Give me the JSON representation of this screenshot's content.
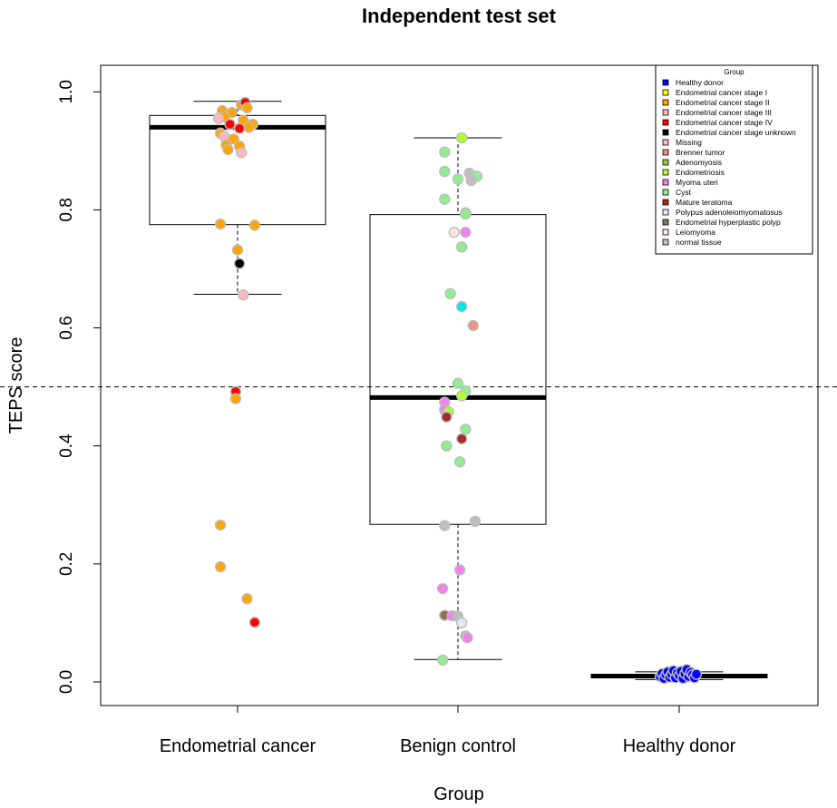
{
  "chart_data": {
    "type": "boxplot",
    "title": "Independent test set",
    "xlabel": "Group",
    "ylabel": "TEPS score",
    "ylim": [
      -0.04,
      1.045
    ],
    "yticks": [
      "0.0",
      "0.2",
      "0.4",
      "0.6",
      "0.8",
      "1.0"
    ],
    "ytick_values": [
      0,
      0.2,
      0.4,
      0.6,
      0.8,
      1.0
    ],
    "reference_line": 0.5,
    "categories": [
      "Endometrial cancer",
      "Benign control",
      "Healthy donor"
    ],
    "boxes": [
      {
        "category": "Endometrial cancer",
        "whisker_low": 0.657,
        "q1": 0.775,
        "median": 0.94,
        "q3": 0.96,
        "whisker_high": 0.984
      },
      {
        "category": "Benign control",
        "whisker_low": 0.038,
        "q1": 0.267,
        "median": 0.482,
        "q3": 0.792,
        "whisker_high": 0.922
      },
      {
        "category": "Healthy donor",
        "whisker_low": 0.004,
        "q1": 0.007,
        "median": 0.01,
        "q3": 0.013,
        "whisker_high": 0.017
      }
    ],
    "legend": {
      "title": "Group",
      "position": "top-right",
      "entries": [
        {
          "label": "Healthy donor",
          "color": "#0000ff"
        },
        {
          "label": "Endometrial cancer stage I",
          "color": "#ffff00"
        },
        {
          "label": "Endometrial cancer stage II",
          "color": "#ffa500"
        },
        {
          "label": "Endometrial cancer stage III",
          "color": "#ffb6c1"
        },
        {
          "label": "Endometrial cancer stage IV",
          "color": "#ff0000"
        },
        {
          "label": "Endometrial cancer stage unknown",
          "color": "#000000"
        },
        {
          "label": "Missing",
          "color": "#ffb6c1"
        },
        {
          "label": "Brenner tumor",
          "color": "#e9967a"
        },
        {
          "label": "Adenomyosis",
          "color": "#9acd32"
        },
        {
          "label": "Endometriosis",
          "color": "#adff2f"
        },
        {
          "label": "Myoma uteri",
          "color": "#ee82ee"
        },
        {
          "label": "Cyst",
          "color": "#90ee90"
        },
        {
          "label": "Mature teratoma",
          "color": "#a52a2a"
        },
        {
          "label": "Polypus adenoleiomyomatosus",
          "color": "#e6e6fa"
        },
        {
          "label": "Endometrial hyperplastic polyp",
          "color": "#8b7355"
        },
        {
          "label": "Leiomyoma",
          "color": "#ffe4e1"
        },
        {
          "label": "normal tissue",
          "color": "#bebebe"
        }
      ]
    },
    "points": [
      {
        "group": 0,
        "dx": -0.08,
        "y": 0.968,
        "color": "#ffa500"
      },
      {
        "group": 0,
        "dx": -0.03,
        "y": 0.965,
        "color": "#ffa500"
      },
      {
        "group": 0,
        "dx": -0.07,
        "y": 0.958,
        "color": "#ffa500"
      },
      {
        "group": 0,
        "dx": -0.1,
        "y": 0.955,
        "color": "#ffb6c1"
      },
      {
        "group": 0,
        "dx": 0.02,
        "y": 0.978,
        "color": "#ffa500"
      },
      {
        "group": 0,
        "dx": 0.04,
        "y": 0.982,
        "color": "#ff0000"
      },
      {
        "group": 0,
        "dx": 0.05,
        "y": 0.973,
        "color": "#ffa500"
      },
      {
        "group": 0,
        "dx": 0.03,
        "y": 0.952,
        "color": "#ffa500"
      },
      {
        "group": 0,
        "dx": 0.08,
        "y": 0.945,
        "color": "#ffa500"
      },
      {
        "group": 0,
        "dx": 0.06,
        "y": 0.94,
        "color": "#ffa500"
      },
      {
        "group": 0,
        "dx": -0.04,
        "y": 0.945,
        "color": "#ff0000"
      },
      {
        "group": 0,
        "dx": 0.01,
        "y": 0.938,
        "color": "#ff0000"
      },
      {
        "group": 0,
        "dx": -0.09,
        "y": 0.93,
        "color": "#ffa500"
      },
      {
        "group": 0,
        "dx": -0.07,
        "y": 0.925,
        "color": "#ffb6c1"
      },
      {
        "group": 0,
        "dx": -0.02,
        "y": 0.92,
        "color": "#ffa500"
      },
      {
        "group": 0,
        "dx": -0.06,
        "y": 0.91,
        "color": "#ffa500"
      },
      {
        "group": 0,
        "dx": 0.01,
        "y": 0.908,
        "color": "#ffa500"
      },
      {
        "group": 0,
        "dx": -0.05,
        "y": 0.902,
        "color": "#ffa500"
      },
      {
        "group": 0,
        "dx": 0.02,
        "y": 0.897,
        "color": "#ffb6c1"
      },
      {
        "group": 0,
        "dx": -0.09,
        "y": 0.776,
        "color": "#ffa500"
      },
      {
        "group": 0,
        "dx": 0.09,
        "y": 0.774,
        "color": "#ffa500"
      },
      {
        "group": 0,
        "dx": 0.0,
        "y": 0.732,
        "color": "#ffa500"
      },
      {
        "group": 0,
        "dx": 0.01,
        "y": 0.709,
        "color": "#000000"
      },
      {
        "group": 0,
        "dx": 0.03,
        "y": 0.656,
        "color": "#ffb6c1"
      },
      {
        "group": 0,
        "dx": -0.01,
        "y": 0.492,
        "color": "#ff0000"
      },
      {
        "group": 0,
        "dx": -0.01,
        "y": 0.48,
        "color": "#ffa500"
      },
      {
        "group": 0,
        "dx": -0.09,
        "y": 0.266,
        "color": "#ffa500"
      },
      {
        "group": 0,
        "dx": -0.09,
        "y": 0.195,
        "color": "#ffa500"
      },
      {
        "group": 0,
        "dx": 0.05,
        "y": 0.141,
        "color": "#ffa500"
      },
      {
        "group": 0,
        "dx": 0.09,
        "y": 0.101,
        "color": "#ff0000"
      },
      {
        "group": 1,
        "dx": 0.02,
        "y": 0.922,
        "color": "#adff2f"
      },
      {
        "group": 1,
        "dx": -0.07,
        "y": 0.898,
        "color": "#90ee90"
      },
      {
        "group": 1,
        "dx": -0.07,
        "y": 0.865,
        "color": "#90ee90"
      },
      {
        "group": 1,
        "dx": 0.06,
        "y": 0.862,
        "color": "#bebebe"
      },
      {
        "group": 1,
        "dx": 0.1,
        "y": 0.857,
        "color": "#90ee90"
      },
      {
        "group": 1,
        "dx": 0.0,
        "y": 0.852,
        "color": "#90ee90"
      },
      {
        "group": 1,
        "dx": 0.07,
        "y": 0.85,
        "color": "#bebebe"
      },
      {
        "group": 1,
        "dx": -0.07,
        "y": 0.818,
        "color": "#90ee90"
      },
      {
        "group": 1,
        "dx": 0.04,
        "y": 0.795,
        "color": "#bebebe"
      },
      {
        "group": 1,
        "dx": 0.04,
        "y": 0.793,
        "color": "#90ee90"
      },
      {
        "group": 1,
        "dx": -0.02,
        "y": 0.762,
        "color": "#ffe4e1"
      },
      {
        "group": 1,
        "dx": 0.04,
        "y": 0.762,
        "color": "#ee82ee"
      },
      {
        "group": 1,
        "dx": 0.02,
        "y": 0.737,
        "color": "#90ee90"
      },
      {
        "group": 1,
        "dx": -0.04,
        "y": 0.658,
        "color": "#90ee90"
      },
      {
        "group": 1,
        "dx": 0.02,
        "y": 0.636,
        "color": "#00e5ee"
      },
      {
        "group": 1,
        "dx": 0.08,
        "y": 0.604,
        "color": "#e9967a"
      },
      {
        "group": 1,
        "dx": 0.0,
        "y": 0.506,
        "color": "#90ee90"
      },
      {
        "group": 1,
        "dx": 0.04,
        "y": 0.493,
        "color": "#90ee90"
      },
      {
        "group": 1,
        "dx": 0.02,
        "y": 0.485,
        "color": "#adff2f"
      },
      {
        "group": 1,
        "dx": -0.07,
        "y": 0.474,
        "color": "#ee82ee"
      },
      {
        "group": 1,
        "dx": -0.07,
        "y": 0.461,
        "color": "#ee82ee"
      },
      {
        "group": 1,
        "dx": -0.05,
        "y": 0.458,
        "color": "#adff2f"
      },
      {
        "group": 1,
        "dx": -0.06,
        "y": 0.449,
        "color": "#a52a2a"
      },
      {
        "group": 1,
        "dx": 0.04,
        "y": 0.428,
        "color": "#90ee90"
      },
      {
        "group": 1,
        "dx": 0.02,
        "y": 0.412,
        "color": "#a52a2a"
      },
      {
        "group": 1,
        "dx": -0.06,
        "y": 0.4,
        "color": "#90ee90"
      },
      {
        "group": 1,
        "dx": 0.01,
        "y": 0.373,
        "color": "#90ee90"
      },
      {
        "group": 1,
        "dx": 0.09,
        "y": 0.272,
        "color": "#bebebe"
      },
      {
        "group": 1,
        "dx": -0.07,
        "y": 0.265,
        "color": "#bebebe"
      },
      {
        "group": 1,
        "dx": 0.01,
        "y": 0.19,
        "color": "#ee82ee"
      },
      {
        "group": 1,
        "dx": -0.08,
        "y": 0.158,
        "color": "#ee82ee"
      },
      {
        "group": 1,
        "dx": -0.07,
        "y": 0.113,
        "color": "#8b7355"
      },
      {
        "group": 1,
        "dx": -0.03,
        "y": 0.112,
        "color": "#ee82ee"
      },
      {
        "group": 1,
        "dx": 0.0,
        "y": 0.111,
        "color": "#bebebe"
      },
      {
        "group": 1,
        "dx": 0.02,
        "y": 0.1,
        "color": "#e6e6fa"
      },
      {
        "group": 1,
        "dx": 0.04,
        "y": 0.078,
        "color": "#bebebe"
      },
      {
        "group": 1,
        "dx": 0.05,
        "y": 0.075,
        "color": "#ee82ee"
      },
      {
        "group": 1,
        "dx": -0.08,
        "y": 0.037,
        "color": "#90ee90"
      },
      {
        "group": 2,
        "dx": -0.1,
        "y": 0.009,
        "color": "#0000ff"
      },
      {
        "group": 2,
        "dx": -0.09,
        "y": 0.014,
        "color": "#0000ff"
      },
      {
        "group": 2,
        "dx": -0.08,
        "y": 0.006,
        "color": "#0000ff"
      },
      {
        "group": 2,
        "dx": -0.07,
        "y": 0.012,
        "color": "#0000ff"
      },
      {
        "group": 2,
        "dx": -0.06,
        "y": 0.017,
        "color": "#0000ff"
      },
      {
        "group": 2,
        "dx": -0.05,
        "y": 0.008,
        "color": "#0000ff"
      },
      {
        "group": 2,
        "dx": -0.04,
        "y": 0.013,
        "color": "#0000ff"
      },
      {
        "group": 2,
        "dx": -0.03,
        "y": 0.019,
        "color": "#0000ff"
      },
      {
        "group": 2,
        "dx": -0.02,
        "y": 0.007,
        "color": "#0000ff"
      },
      {
        "group": 2,
        "dx": -0.01,
        "y": 0.015,
        "color": "#0000ff"
      },
      {
        "group": 2,
        "dx": 0.0,
        "y": 0.011,
        "color": "#0000ff"
      },
      {
        "group": 2,
        "dx": 0.01,
        "y": 0.018,
        "color": "#0000ff"
      },
      {
        "group": 2,
        "dx": 0.02,
        "y": 0.006,
        "color": "#0000ff"
      },
      {
        "group": 2,
        "dx": 0.03,
        "y": 0.014,
        "color": "#0000ff"
      },
      {
        "group": 2,
        "dx": 0.04,
        "y": 0.021,
        "color": "#0000ff"
      },
      {
        "group": 2,
        "dx": 0.05,
        "y": 0.009,
        "color": "#0000ff"
      },
      {
        "group": 2,
        "dx": 0.06,
        "y": 0.016,
        "color": "#0000ff"
      },
      {
        "group": 2,
        "dx": 0.07,
        "y": 0.012,
        "color": "#0000ff"
      },
      {
        "group": 2,
        "dx": 0.08,
        "y": 0.007,
        "color": "#0000ff"
      },
      {
        "group": 2,
        "dx": 0.09,
        "y": 0.013,
        "color": "#0000ff"
      }
    ]
  }
}
